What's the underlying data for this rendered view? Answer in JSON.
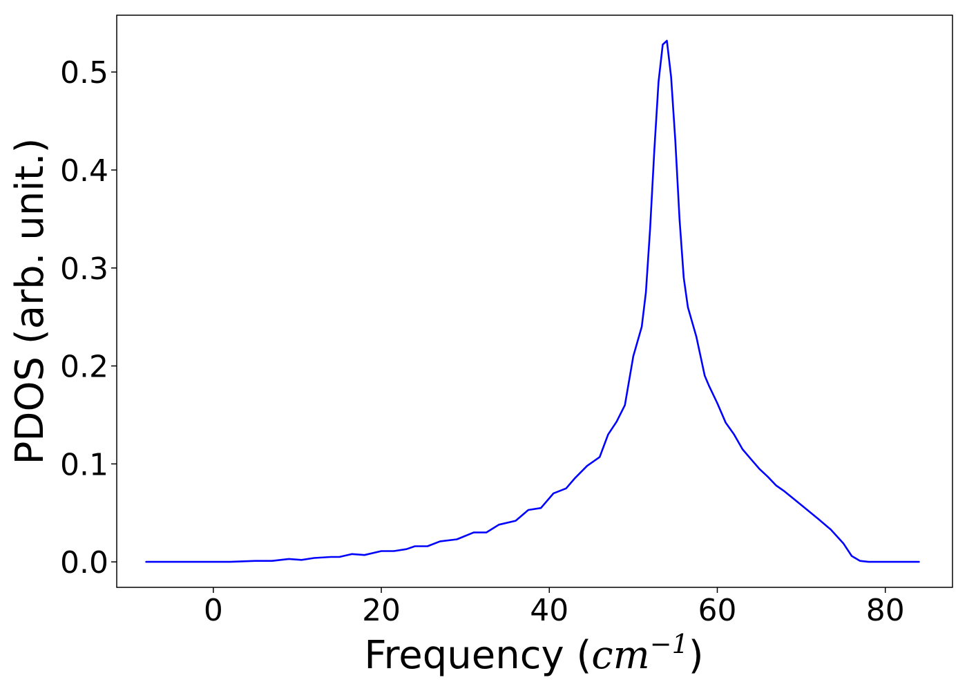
{
  "chart_data": {
    "type": "line",
    "xlabel_text": "Frequency (",
    "xlabel_math": "cm",
    "xlabel_sup": "−1",
    "xlabel_close": ")",
    "ylabel": "PDOS (arb. unit.)",
    "xlim": [
      -11.5,
      88
    ],
    "ylim": [
      -0.026,
      0.558
    ],
    "x_ticks": [
      0,
      20,
      40,
      60,
      80
    ],
    "x_tick_labels": [
      "0",
      "20",
      "40",
      "60",
      "80"
    ],
    "y_ticks": [
      0.0,
      0.1,
      0.2,
      0.3,
      0.4,
      0.5
    ],
    "y_tick_labels": [
      "0.0",
      "0.1",
      "0.2",
      "0.3",
      "0.4",
      "0.5"
    ],
    "grid": false,
    "colors": {
      "line": "#0000ff",
      "axes": "#000000",
      "background": "#ffffff"
    },
    "series": [
      {
        "x": [
          -8,
          -2,
          2,
          5,
          7,
          9,
          10.5,
          12,
          14,
          15,
          16.5,
          18,
          20,
          21.5,
          23,
          24,
          25.5,
          27,
          29,
          31,
          32.5,
          34,
          36,
          37.5,
          39,
          40.5,
          42,
          43,
          44.5,
          46,
          47,
          48,
          49,
          50,
          51,
          51.5,
          52,
          52.5,
          53,
          53.5,
          54,
          54.5,
          55,
          55.5,
          56,
          56.5,
          57,
          57.5,
          58,
          58.5,
          59,
          60,
          61,
          62,
          63,
          64,
          65,
          66,
          67,
          68,
          70,
          72,
          73.5,
          75,
          76,
          77,
          78,
          80,
          84
        ],
        "y": [
          0.0,
          0.0,
          0.0,
          0.001,
          0.001,
          0.003,
          0.002,
          0.004,
          0.005,
          0.005,
          0.008,
          0.007,
          0.011,
          0.011,
          0.013,
          0.016,
          0.016,
          0.021,
          0.023,
          0.03,
          0.03,
          0.038,
          0.042,
          0.053,
          0.055,
          0.07,
          0.075,
          0.085,
          0.098,
          0.107,
          0.13,
          0.143,
          0.16,
          0.21,
          0.24,
          0.275,
          0.34,
          0.42,
          0.49,
          0.528,
          0.532,
          0.495,
          0.43,
          0.35,
          0.29,
          0.26,
          0.245,
          0.23,
          0.21,
          0.19,
          0.18,
          0.162,
          0.142,
          0.13,
          0.115,
          0.105,
          0.095,
          0.087,
          0.078,
          0.072,
          0.058,
          0.044,
          0.033,
          0.019,
          0.006,
          0.001,
          0.0,
          0.0,
          0.0
        ]
      }
    ]
  }
}
